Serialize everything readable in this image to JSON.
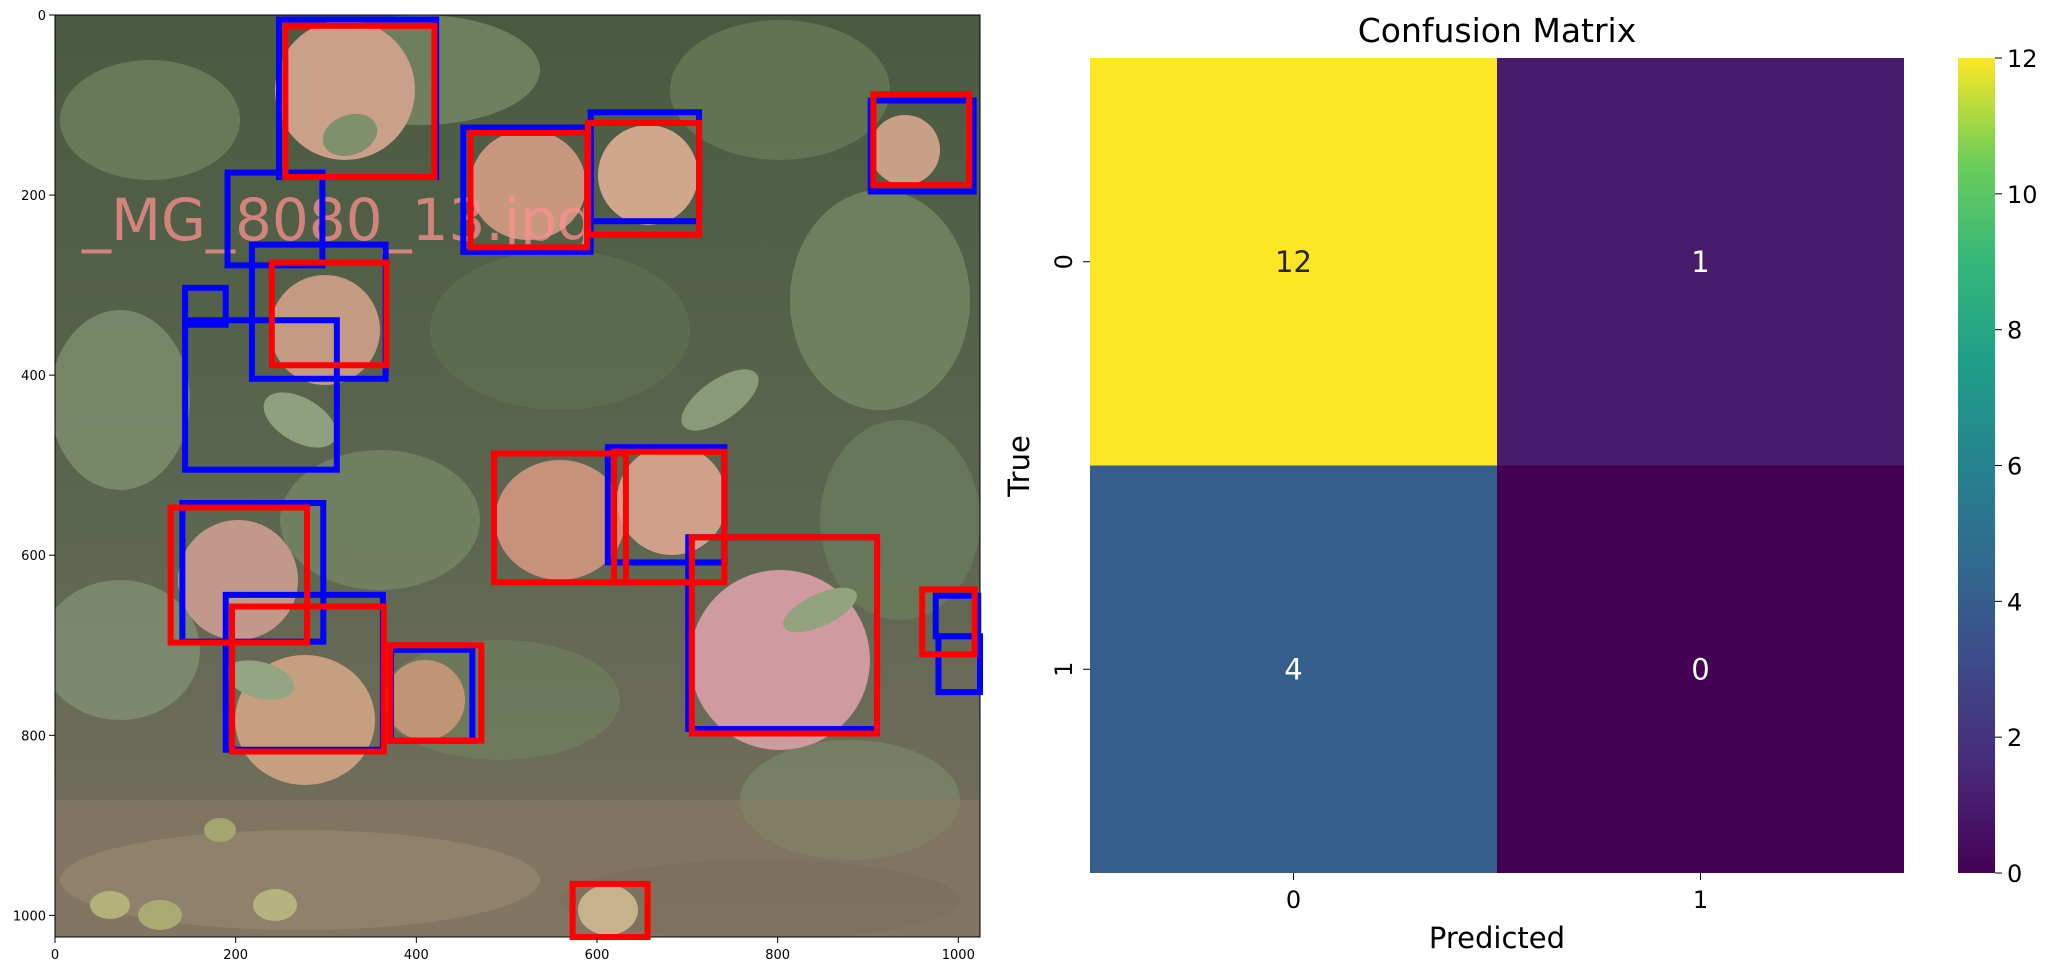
{
  "chart_data": [
    {
      "type": "image-detections",
      "overlay_text": "_MG_8080_13.jpg",
      "xlim": [
        0,
        1024
      ],
      "ylim": [
        1024,
        0
      ],
      "xticks": [
        0,
        200,
        400,
        600,
        800,
        1000
      ],
      "yticks": [
        0,
        200,
        400,
        600,
        800,
        1000
      ],
      "colors": {
        "ground_truth": "#0000ff",
        "prediction": "#ff0000"
      },
      "boxes_blue": [
        [
          248,
          5,
          422,
          180
        ],
        [
          452,
          125,
          593,
          263
        ],
        [
          593,
          108,
          713,
          229
        ],
        [
          903,
          95,
          1017,
          196
        ],
        [
          191,
          175,
          296,
          278
        ],
        [
          218,
          255,
          366,
          404
        ],
        [
          144,
          303,
          189,
          344
        ],
        [
          144,
          339,
          312,
          505
        ],
        [
          612,
          480,
          741,
          608
        ],
        [
          141,
          542,
          297,
          696
        ],
        [
          189,
          644,
          363,
          816
        ],
        [
          372,
          705,
          462,
          806
        ],
        [
          975,
          645,
          1022,
          690
        ],
        [
          978,
          690,
          1024,
          752
        ],
        [
          701,
          580,
          910,
          793
        ]
      ],
      "boxes_red": [
        [
          255,
          12,
          420,
          180
        ],
        [
          460,
          131,
          589,
          258
        ],
        [
          590,
          120,
          713,
          244
        ],
        [
          906,
          88,
          1012,
          189
        ],
        [
          240,
          275,
          367,
          389
        ],
        [
          486,
          487,
          632,
          630
        ],
        [
          619,
          485,
          741,
          630
        ],
        [
          705,
          580,
          910,
          798
        ],
        [
          128,
          547,
          279,
          697
        ],
        [
          196,
          657,
          364,
          818
        ],
        [
          371,
          700,
          472,
          806
        ],
        [
          960,
          638,
          1018,
          710
        ],
        [
          573,
          965,
          656,
          1024
        ]
      ]
    },
    {
      "type": "heatmap",
      "title": "Confusion Matrix",
      "xlabel": "Predicted",
      "ylabel": "True",
      "x_categories": [
        "0",
        "1"
      ],
      "y_categories": [
        "0",
        "1"
      ],
      "values": [
        [
          12,
          1
        ],
        [
          4,
          0
        ]
      ],
      "colormap": "viridis",
      "vmin": 0,
      "vmax": 12,
      "colorbar_ticks": [
        0,
        2,
        4,
        6,
        8,
        10,
        12
      ]
    }
  ]
}
